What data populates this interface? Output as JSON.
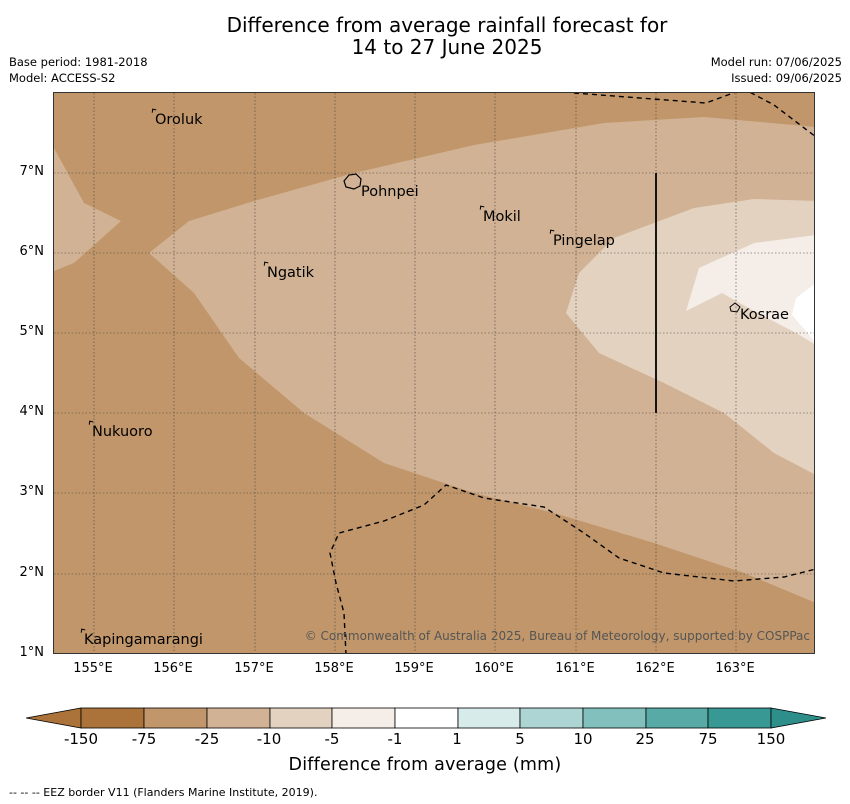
{
  "title_line1": "Difference from average rainfall forecast for",
  "title_line2": "14 to 27 June 2025",
  "base_period": "Base period: 1981-2018",
  "model": "Model: ACCESS-S2",
  "model_run": "Model run: 07/06/2025",
  "issued": "Issued: 09/06/2025",
  "lat_labels": [
    "7°N",
    "6°N",
    "5°N",
    "4°N",
    "3°N",
    "2°N",
    "1°N"
  ],
  "lon_labels": [
    "155°E",
    "156°E",
    "157°E",
    "158°E",
    "159°E",
    "160°E",
    "161°E",
    "162°E",
    "163°E"
  ],
  "places": {
    "oroluk": "Oroluk",
    "pohnpei": "Pohnpei",
    "mokil": "Mokil",
    "pingelap": "Pingelap",
    "ngatik": "Ngatik",
    "kosrae": "Kosrae",
    "nukuoro": "Nukuoro",
    "kapingamarangi": "Kapingamarangi"
  },
  "credit": "© Commonwealth of Australia 2025, Bureau of Meteorology, supported by COSPPac",
  "colorbar": {
    "labels": [
      "-150",
      "-75",
      "-25",
      "-10",
      "-5",
      "-1",
      "1",
      "5",
      "10",
      "25",
      "75",
      "150"
    ],
    "colors": [
      "#ab733a",
      "#c0966a",
      "#d1b294",
      "#e4d2c1",
      "#f5ede7",
      "#ffffff",
      "#d7ebea",
      "#acd5d3",
      "#82c0bd",
      "#58aaa6",
      "#379894",
      "#2e8f8a"
    ],
    "title": "Difference from average (mm)"
  },
  "footer": "--  --  -- EEZ border V11 (Flanders Marine Institute, 2019)."
}
